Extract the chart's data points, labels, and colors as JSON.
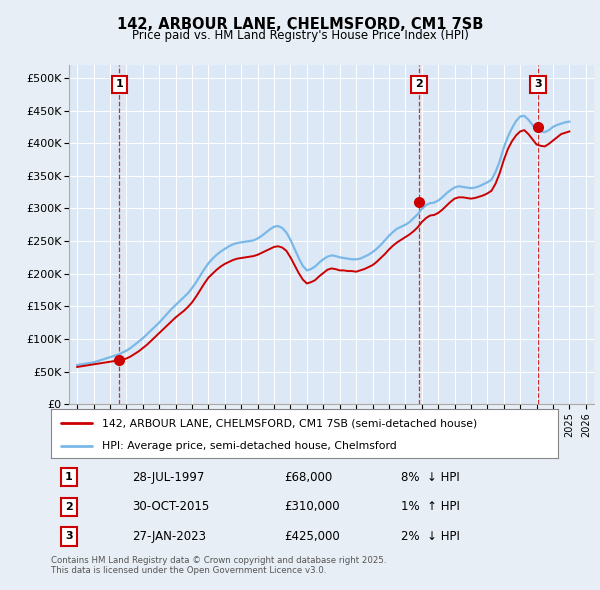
{
  "title": "142, ARBOUR LANE, CHELMSFORD, CM1 7SB",
  "subtitle": "Price paid vs. HM Land Registry's House Price Index (HPI)",
  "background_color": "#e8eef5",
  "plot_bg_color": "#dce8f5",
  "xlim": [
    1994.5,
    2026.5
  ],
  "ylim": [
    0,
    520000
  ],
  "yticks": [
    0,
    50000,
    100000,
    150000,
    200000,
    250000,
    300000,
    350000,
    400000,
    450000,
    500000
  ],
  "ytick_labels": [
    "£0",
    "£50K",
    "£100K",
    "£150K",
    "£200K",
    "£250K",
    "£300K",
    "£350K",
    "£400K",
    "£450K",
    "£500K"
  ],
  "xtick_years": [
    1995,
    1996,
    1997,
    1998,
    1999,
    2000,
    2001,
    2002,
    2003,
    2004,
    2005,
    2006,
    2007,
    2008,
    2009,
    2010,
    2011,
    2012,
    2013,
    2014,
    2015,
    2016,
    2017,
    2018,
    2019,
    2020,
    2021,
    2022,
    2023,
    2024,
    2025,
    2026
  ],
  "sales": [
    {
      "num": 1,
      "date": "28-JUL-1997",
      "year": 1997.57,
      "price": 68000,
      "hpi_pct": "8%",
      "hpi_dir": "↓"
    },
    {
      "num": 2,
      "date": "30-OCT-2015",
      "year": 2015.83,
      "price": 310000,
      "hpi_pct": "1%",
      "hpi_dir": "↑"
    },
    {
      "num": 3,
      "date": "27-JAN-2023",
      "year": 2023.08,
      "price": 425000,
      "hpi_pct": "2%",
      "hpi_dir": "↓"
    }
  ],
  "hpi_line_color": "#7ab8e8",
  "price_line_color": "#cc0000",
  "sale_marker_color": "#cc0000",
  "vline_color": "#cc0000",
  "legend_text_property": "142, ARBOUR LANE, CHELMSFORD, CM1 7SB (semi-detached house)",
  "legend_text_hpi": "HPI: Average price, semi-detached house, Chelmsford",
  "footer": "Contains HM Land Registry data © Crown copyright and database right 2025.\nThis data is licensed under the Open Government Licence v3.0.",
  "hpi_data_x": [
    1995.0,
    1995.25,
    1995.5,
    1995.75,
    1996.0,
    1996.25,
    1996.5,
    1996.75,
    1997.0,
    1997.25,
    1997.5,
    1997.75,
    1998.0,
    1998.25,
    1998.5,
    1998.75,
    1999.0,
    1999.25,
    1999.5,
    1999.75,
    2000.0,
    2000.25,
    2000.5,
    2000.75,
    2001.0,
    2001.25,
    2001.5,
    2001.75,
    2002.0,
    2002.25,
    2002.5,
    2002.75,
    2003.0,
    2003.25,
    2003.5,
    2003.75,
    2004.0,
    2004.25,
    2004.5,
    2004.75,
    2005.0,
    2005.25,
    2005.5,
    2005.75,
    2006.0,
    2006.25,
    2006.5,
    2006.75,
    2007.0,
    2007.25,
    2007.5,
    2007.75,
    2008.0,
    2008.25,
    2008.5,
    2008.75,
    2009.0,
    2009.25,
    2009.5,
    2009.75,
    2010.0,
    2010.25,
    2010.5,
    2010.75,
    2011.0,
    2011.25,
    2011.5,
    2011.75,
    2012.0,
    2012.25,
    2012.5,
    2012.75,
    2013.0,
    2013.25,
    2013.5,
    2013.75,
    2014.0,
    2014.25,
    2014.5,
    2014.75,
    2015.0,
    2015.25,
    2015.5,
    2015.75,
    2016.0,
    2016.25,
    2016.5,
    2016.75,
    2017.0,
    2017.25,
    2017.5,
    2017.75,
    2018.0,
    2018.25,
    2018.5,
    2018.75,
    2019.0,
    2019.25,
    2019.5,
    2019.75,
    2020.0,
    2020.25,
    2020.5,
    2020.75,
    2021.0,
    2021.25,
    2021.5,
    2021.75,
    2022.0,
    2022.25,
    2022.5,
    2022.75,
    2023.0,
    2023.25,
    2023.5,
    2023.75,
    2024.0,
    2024.25,
    2024.5,
    2024.75,
    2025.0
  ],
  "hpi_data_y": [
    60000,
    61000,
    62000,
    63000,
    64000,
    66000,
    68000,
    70000,
    72000,
    74000,
    76000,
    79000,
    82000,
    86000,
    91000,
    96000,
    101000,
    107000,
    113000,
    119000,
    125000,
    132000,
    139000,
    146000,
    152000,
    158000,
    164000,
    170000,
    178000,
    187000,
    197000,
    207000,
    216000,
    223000,
    229000,
    234000,
    238000,
    242000,
    245000,
    247000,
    248000,
    249000,
    250000,
    251000,
    254000,
    258000,
    263000,
    268000,
    272000,
    273000,
    270000,
    263000,
    252000,
    238000,
    224000,
    212000,
    205000,
    207000,
    211000,
    217000,
    222000,
    226000,
    228000,
    227000,
    225000,
    224000,
    223000,
    222000,
    222000,
    223000,
    226000,
    229000,
    233000,
    238000,
    244000,
    251000,
    258000,
    264000,
    269000,
    272000,
    275000,
    279000,
    285000,
    291000,
    299000,
    305000,
    308000,
    309000,
    312000,
    317000,
    323000,
    328000,
    332000,
    334000,
    333000,
    332000,
    331000,
    332000,
    334000,
    337000,
    340000,
    344000,
    356000,
    372000,
    393000,
    410000,
    423000,
    434000,
    441000,
    442000,
    436000,
    428000,
    420000,
    418000,
    417000,
    420000,
    425000,
    428000,
    430000,
    432000,
    433000
  ],
  "price_data_x": [
    1995.0,
    1995.25,
    1995.5,
    1995.75,
    1996.0,
    1996.25,
    1996.5,
    1996.75,
    1997.0,
    1997.25,
    1997.5,
    1997.75,
    1998.0,
    1998.25,
    1998.5,
    1998.75,
    1999.0,
    1999.25,
    1999.5,
    1999.75,
    2000.0,
    2000.25,
    2000.5,
    2000.75,
    2001.0,
    2001.25,
    2001.5,
    2001.75,
    2002.0,
    2002.25,
    2002.5,
    2002.75,
    2003.0,
    2003.25,
    2003.5,
    2003.75,
    2004.0,
    2004.25,
    2004.5,
    2004.75,
    2005.0,
    2005.25,
    2005.5,
    2005.75,
    2006.0,
    2006.25,
    2006.5,
    2006.75,
    2007.0,
    2007.25,
    2007.5,
    2007.75,
    2008.0,
    2008.25,
    2008.5,
    2008.75,
    2009.0,
    2009.25,
    2009.5,
    2009.75,
    2010.0,
    2010.25,
    2010.5,
    2010.75,
    2011.0,
    2011.25,
    2011.5,
    2011.75,
    2012.0,
    2012.25,
    2012.5,
    2012.75,
    2013.0,
    2013.25,
    2013.5,
    2013.75,
    2014.0,
    2014.25,
    2014.5,
    2014.75,
    2015.0,
    2015.25,
    2015.5,
    2015.75,
    2016.0,
    2016.25,
    2016.5,
    2016.75,
    2017.0,
    2017.25,
    2017.5,
    2017.75,
    2018.0,
    2018.25,
    2018.5,
    2018.75,
    2019.0,
    2019.25,
    2019.5,
    2019.75,
    2020.0,
    2020.25,
    2020.5,
    2020.75,
    2021.0,
    2021.25,
    2021.5,
    2021.75,
    2022.0,
    2022.25,
    2022.5,
    2022.75,
    2023.0,
    2023.25,
    2023.5,
    2023.75,
    2024.0,
    2024.25,
    2024.5,
    2024.75,
    2025.0
  ],
  "price_data_y": [
    57000,
    58000,
    59000,
    60000,
    61000,
    62000,
    63000,
    64000,
    65000,
    66000,
    67000,
    68000,
    70000,
    73000,
    77000,
    81000,
    86000,
    91000,
    97000,
    103000,
    109000,
    115000,
    121000,
    127000,
    133000,
    138000,
    143000,
    149000,
    156000,
    165000,
    175000,
    185000,
    194000,
    200000,
    206000,
    211000,
    215000,
    218000,
    221000,
    223000,
    224000,
    225000,
    226000,
    227000,
    229000,
    232000,
    235000,
    238000,
    241000,
    242000,
    240000,
    235000,
    225000,
    213000,
    201000,
    191000,
    185000,
    187000,
    190000,
    196000,
    201000,
    206000,
    208000,
    207000,
    205000,
    205000,
    204000,
    204000,
    203000,
    205000,
    207000,
    210000,
    213000,
    218000,
    224000,
    230000,
    237000,
    243000,
    248000,
    252000,
    256000,
    260000,
    265000,
    271000,
    279000,
    285000,
    289000,
    290000,
    293000,
    298000,
    304000,
    310000,
    315000,
    317000,
    317000,
    316000,
    315000,
    316000,
    318000,
    320000,
    323000,
    327000,
    338000,
    354000,
    374000,
    391000,
    403000,
    412000,
    418000,
    420000,
    414000,
    406000,
    398000,
    396000,
    395000,
    399000,
    404000,
    409000,
    414000,
    416000,
    418000
  ]
}
